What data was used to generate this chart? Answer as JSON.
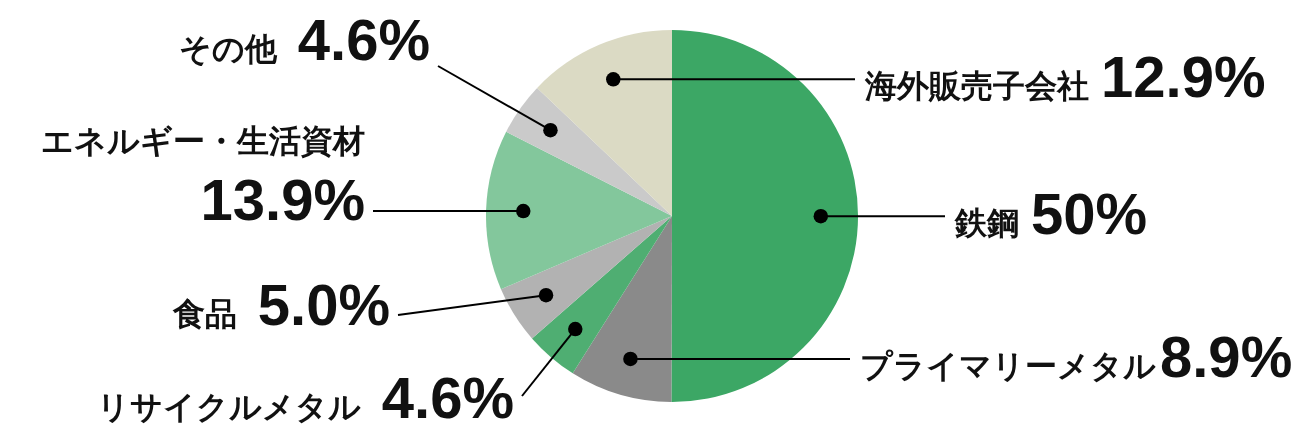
{
  "chart_data": {
    "type": "pie",
    "categories": [
      "鉄鋼",
      "プライマリーメタル",
      "リサイクルメタル",
      "食品",
      "エネルギー・生活資材",
      "その他",
      "海外販売子会社"
    ],
    "values": [
      50,
      8.9,
      4.6,
      5.0,
      13.9,
      4.6,
      12.9
    ],
    "colors": [
      "#3ca765",
      "#8a8a8a",
      "#4fae72",
      "#b2b2b2",
      "#83c79c",
      "#cacaca",
      "#dbdac4"
    ],
    "value_labels": [
      "50%",
      "8.9%",
      "4.6%",
      "5.0%",
      "13.9%",
      "4.6%",
      "12.9%"
    ]
  }
}
